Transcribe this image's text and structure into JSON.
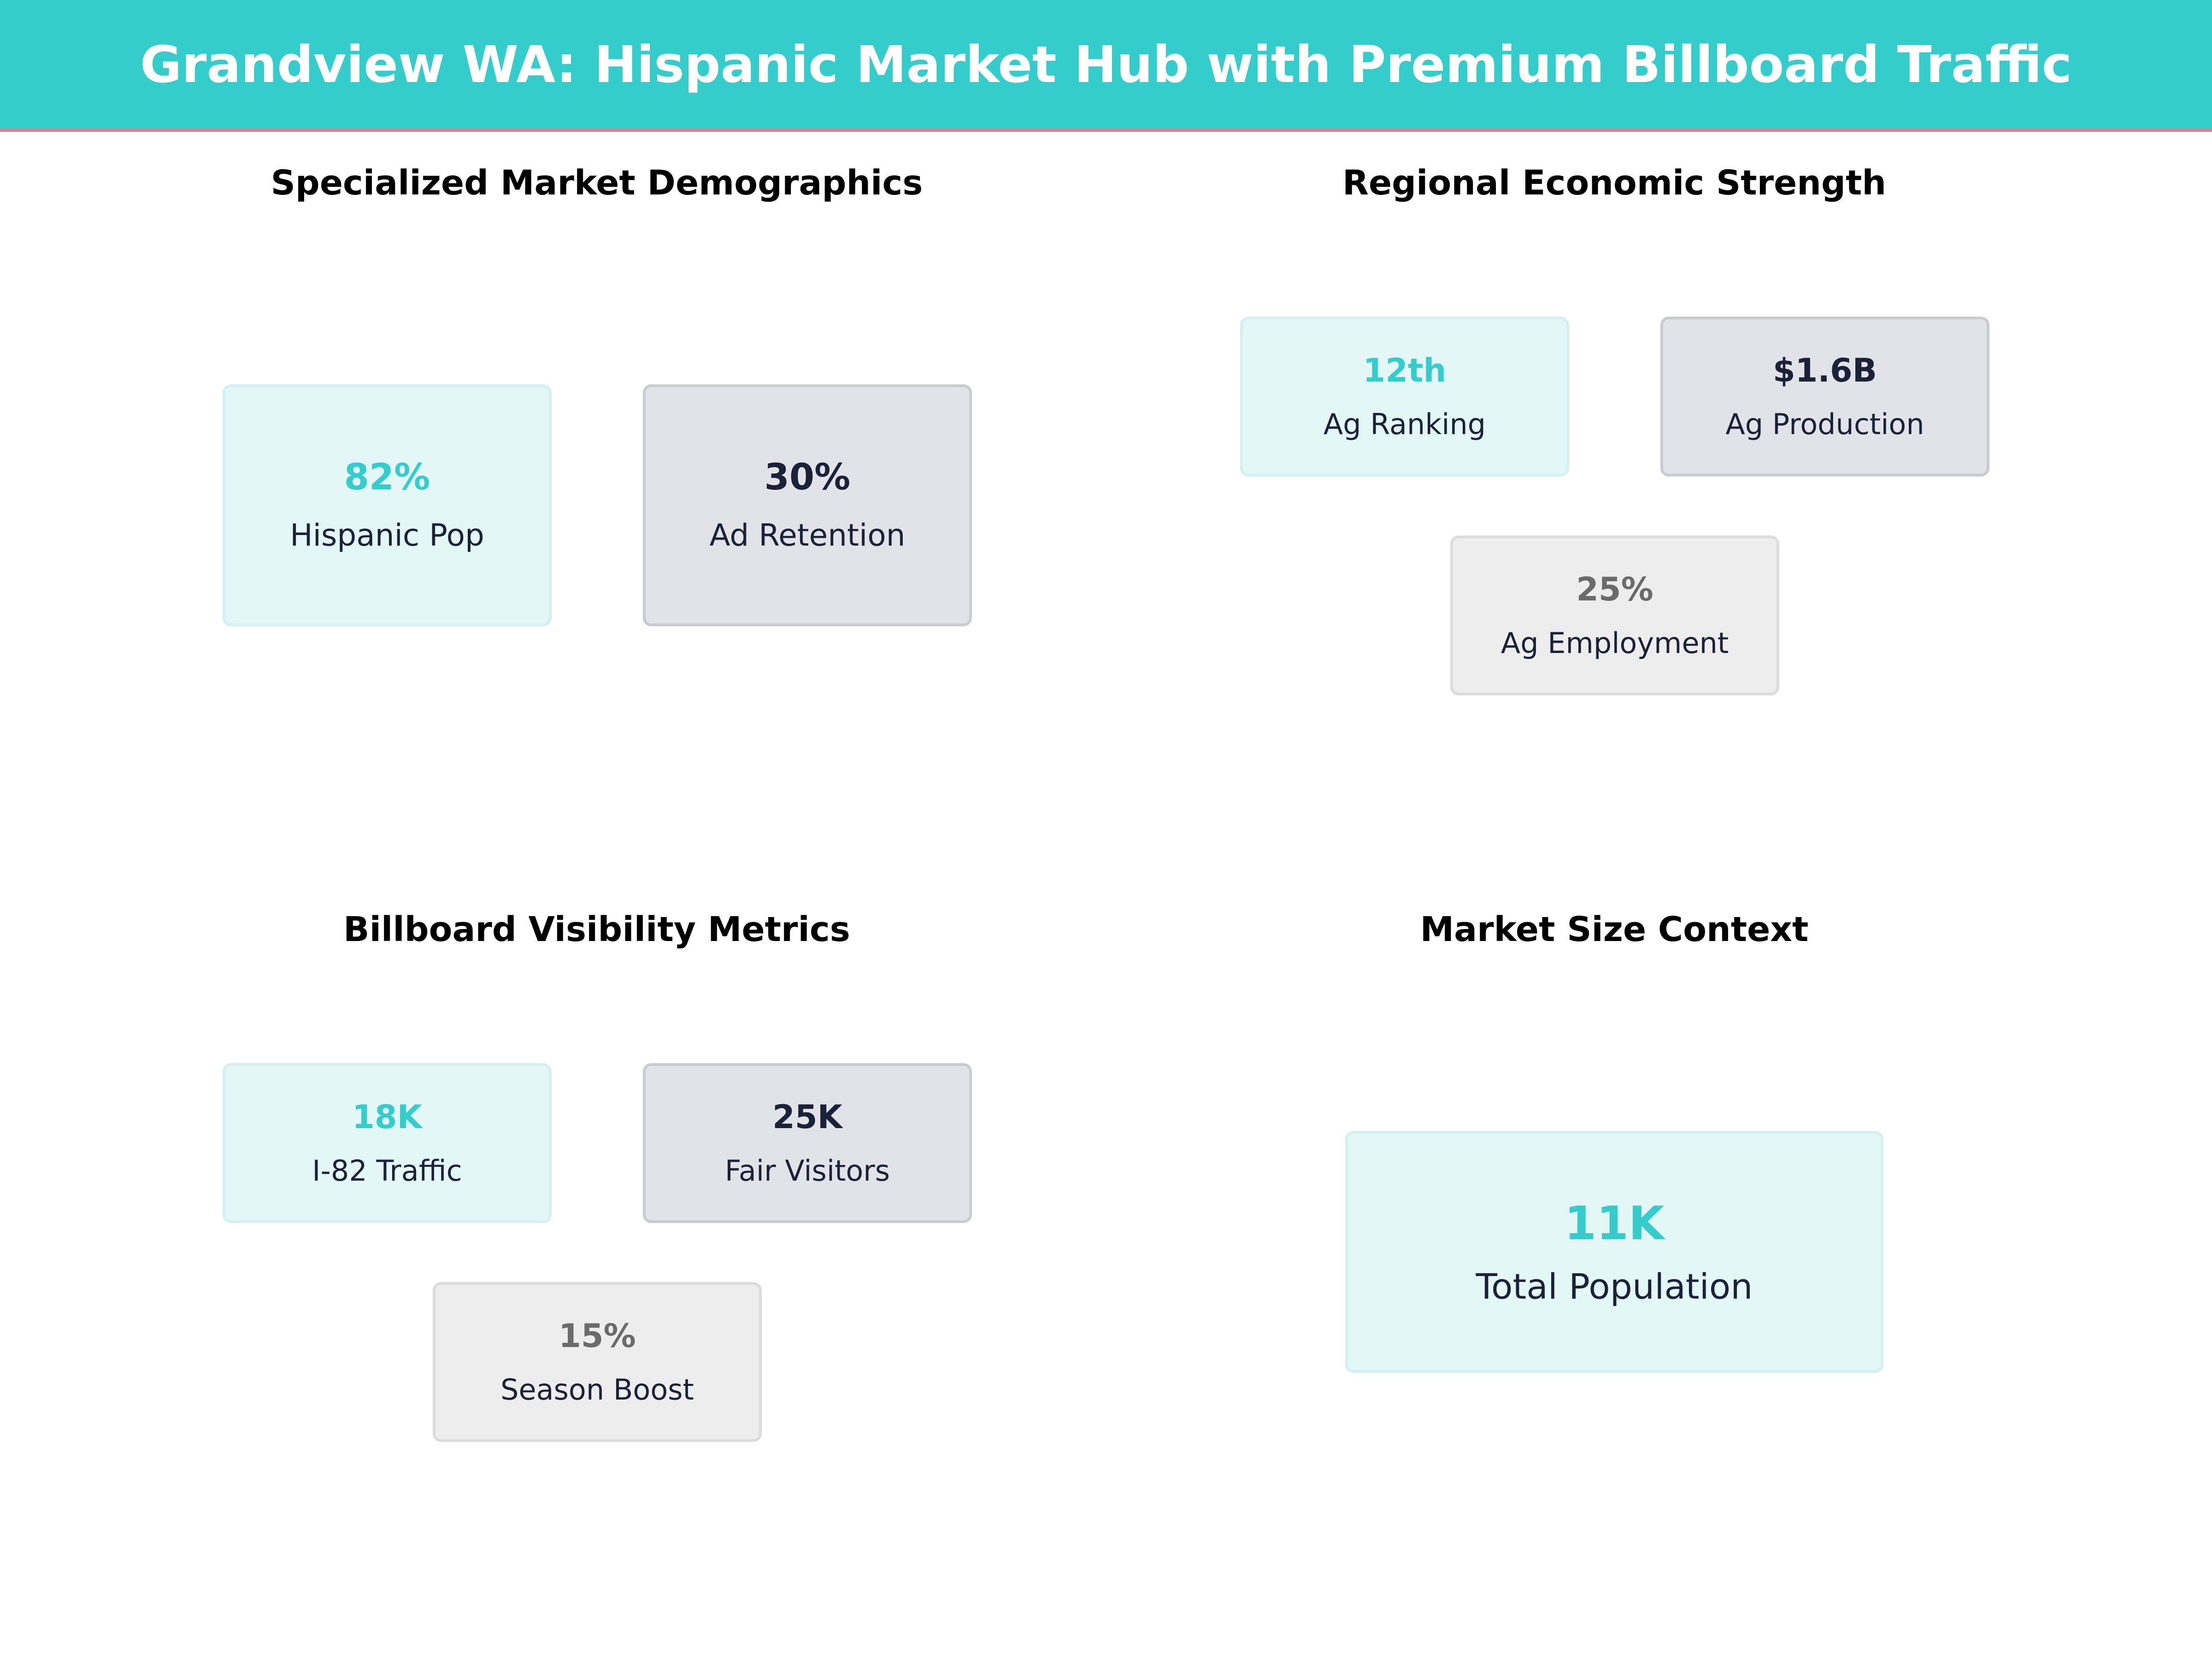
{
  "title": "Grandview WA: Hispanic Market Hub with Premium Billboard Traffic",
  "colors": {
    "accent": "#35CCCC",
    "navy": "#1B2238",
    "grey": "#6B6B6B",
    "header_underline": "#E57A8A"
  },
  "sections": {
    "demographics": {
      "title": "Specialized Market Demographics",
      "cards": [
        {
          "value": "82%",
          "label": "Hispanic Pop",
          "style": "teal"
        },
        {
          "value": "30%",
          "label": "Ad Retention",
          "style": "navy"
        }
      ]
    },
    "economic": {
      "title": "Regional Economic Strength",
      "cards": [
        {
          "value": "12th",
          "label": "Ag Ranking",
          "style": "teal"
        },
        {
          "value": "$1.6B",
          "label": "Ag Production",
          "style": "navy"
        },
        {
          "value": "25%",
          "label": "Ag Employment",
          "style": "grey"
        }
      ]
    },
    "billboard": {
      "title": "Billboard Visibility Metrics",
      "cards": [
        {
          "value": "18K",
          "label": "I-82 Traffic",
          "style": "teal"
        },
        {
          "value": "25K",
          "label": "Fair Visitors",
          "style": "navy"
        },
        {
          "value": "15%",
          "label": "Season Boost",
          "style": "grey"
        }
      ]
    },
    "market_size": {
      "title": "Market Size Context",
      "cards": [
        {
          "value": "11K",
          "label": "Total Population",
          "style": "teal"
        }
      ]
    }
  }
}
